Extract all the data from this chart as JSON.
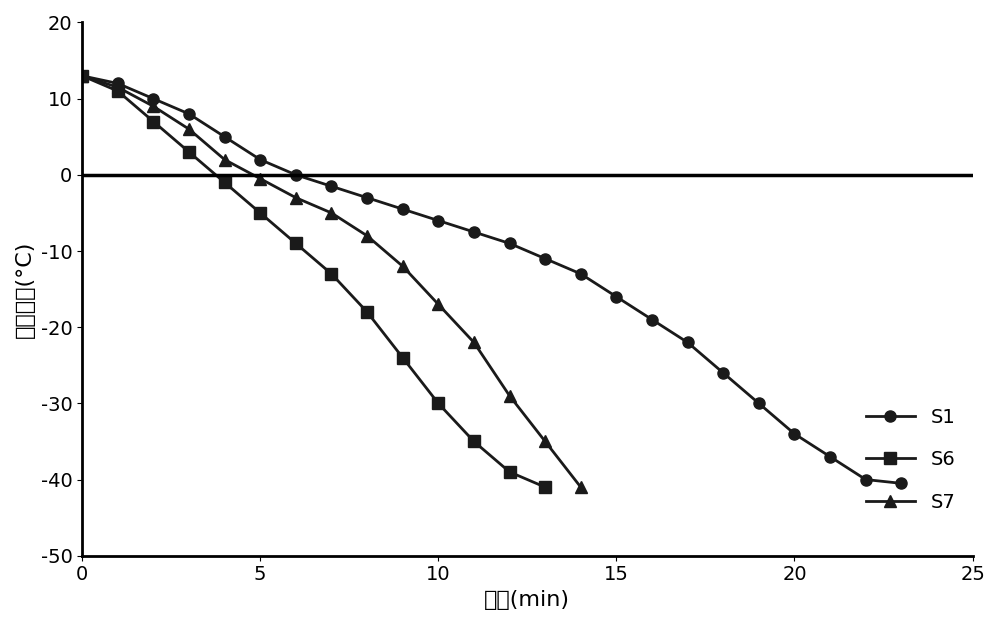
{
  "title": "",
  "xlabel": "时间(min)",
  "ylabel": "中心温度(°C)",
  "xlim": [
    0,
    25
  ],
  "ylim": [
    -50,
    20
  ],
  "xticks": [
    0,
    5,
    10,
    15,
    20,
    25
  ],
  "yticks": [
    -50,
    -40,
    -30,
    -20,
    -10,
    0,
    10,
    20
  ],
  "background_color": "#ffffff",
  "line_color": "#1a1a1a",
  "S1": {
    "x": [
      0,
      1,
      2,
      3,
      4,
      5,
      6,
      7,
      8,
      9,
      10,
      11,
      12,
      13,
      14,
      15,
      16,
      17,
      18,
      19,
      20,
      21,
      22,
      23
    ],
    "y": [
      13,
      12,
      10,
      8,
      5,
      2,
      0,
      -1.5,
      -3,
      -4.5,
      -6,
      -7.5,
      -9,
      -11,
      -13,
      -16,
      -19,
      -22,
      -26,
      -30,
      -34,
      -37,
      -40,
      -40.5
    ],
    "marker": "o",
    "label": "S1"
  },
  "S6": {
    "x": [
      0,
      1,
      2,
      3,
      4,
      5,
      6,
      7,
      8,
      9,
      10,
      11,
      12,
      13
    ],
    "y": [
      13,
      11,
      7,
      3,
      -1,
      -5,
      -9,
      -13,
      -18,
      -24,
      -30,
      -35,
      -39,
      -41
    ],
    "marker": "s",
    "label": "S6"
  },
  "S7": {
    "x": [
      0,
      1,
      2,
      3,
      4,
      5,
      6,
      7,
      8,
      9,
      10,
      11,
      12,
      13,
      14
    ],
    "y": [
      13,
      11.5,
      9,
      6,
      2,
      -0.5,
      -3,
      -5,
      -8,
      -12,
      -17,
      -22,
      -29,
      -35,
      -41
    ],
    "marker": "^",
    "label": "S7"
  },
  "legend_fontsize": 14,
  "axis_fontsize": 16,
  "tick_fontsize": 14,
  "linewidth": 2.0,
  "markersize": 8
}
